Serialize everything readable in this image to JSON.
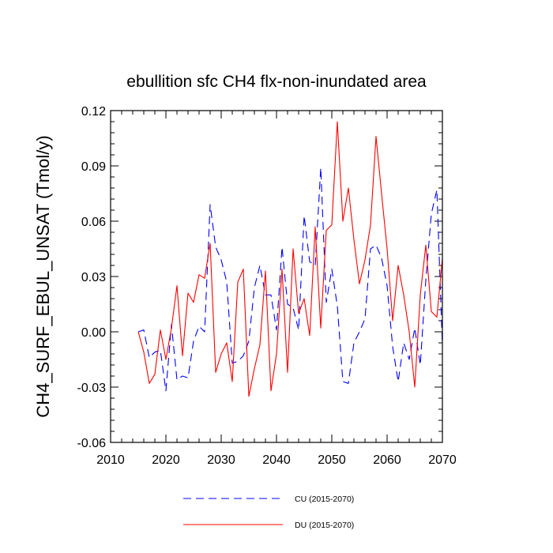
{
  "chart_data": {
    "type": "line",
    "title": "ebullition sfc CH4 flx-non-inundated area",
    "xlabel": "",
    "ylabel": "CH4_SURF_EBUL_UNSAT  (Tmol/y)",
    "xlim": [
      2010,
      2070
    ],
    "ylim": [
      -0.06,
      0.12
    ],
    "xticks": [
      2010,
      2020,
      2030,
      2040,
      2050,
      2060,
      2070
    ],
    "xtick_labels": [
      "2010",
      "2020",
      "2030",
      "2040",
      "2050",
      "2060",
      "2070"
    ],
    "yticks": [
      -0.06,
      -0.03,
      0.0,
      0.03,
      0.06,
      0.09,
      0.12
    ],
    "ytick_labels": [
      "-0.06",
      "-0.03",
      "0.00",
      "0.03",
      "0.06",
      "0.09",
      "0.12"
    ],
    "legend_position": "bottom-center",
    "x": [
      2015,
      2016,
      2017,
      2018,
      2019,
      2020,
      2021,
      2022,
      2023,
      2024,
      2025,
      2026,
      2027,
      2028,
      2029,
      2030,
      2031,
      2032,
      2033,
      2034,
      2035,
      2036,
      2037,
      2038,
      2039,
      2040,
      2041,
      2042,
      2043,
      2044,
      2045,
      2046,
      2047,
      2048,
      2049,
      2050,
      2051,
      2052,
      2053,
      2054,
      2055,
      2056,
      2057,
      2058,
      2059,
      2060,
      2061,
      2062,
      2063,
      2064,
      2065,
      2066,
      2067,
      2068,
      2069,
      2070
    ],
    "series": [
      {
        "name": "CU (2015-2070)",
        "color": "#0000ff",
        "dash": "dashed",
        "values": [
          0.0,
          0.001,
          -0.014,
          -0.011,
          -0.01,
          -0.032,
          0.004,
          -0.026,
          -0.024,
          -0.025,
          -0.005,
          0.003,
          0.0,
          0.069,
          0.046,
          0.039,
          0.027,
          -0.017,
          -0.016,
          -0.013,
          -0.005,
          0.024,
          0.036,
          0.02,
          0.02,
          0.001,
          0.046,
          0.015,
          0.013,
          0.001,
          0.063,
          0.038,
          0.036,
          0.089,
          0.016,
          0.034,
          0.014,
          -0.027,
          -0.028,
          -0.006,
          0.0,
          0.007,
          0.045,
          0.047,
          0.04,
          0.025,
          -0.008,
          -0.027,
          -0.006,
          -0.015,
          0.002,
          -0.018,
          0.028,
          0.064,
          0.077,
          -0.008
        ]
      },
      {
        "name": "DU (2015-2070)",
        "color": "#ff0000",
        "dash": "solid",
        "values": [
          0.0,
          -0.011,
          -0.028,
          -0.023,
          0.001,
          -0.015,
          0.002,
          0.025,
          -0.013,
          0.021,
          0.016,
          0.031,
          0.029,
          0.048,
          -0.022,
          -0.012,
          -0.006,
          -0.027,
          0.027,
          0.034,
          -0.035,
          -0.02,
          -0.007,
          0.033,
          -0.032,
          -0.012,
          0.034,
          -0.022,
          0.045,
          0.01,
          0.018,
          -0.002,
          0.057,
          0.002,
          0.055,
          0.058,
          0.114,
          0.06,
          0.078,
          0.05,
          0.026,
          0.039,
          0.058,
          0.106,
          0.075,
          0.045,
          0.006,
          0.036,
          0.02,
          0.0,
          -0.03,
          0.02,
          0.047,
          0.011,
          0.008,
          0.04
        ]
      }
    ]
  }
}
